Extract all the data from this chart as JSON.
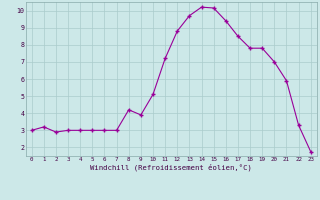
{
  "x": [
    0,
    1,
    2,
    3,
    4,
    5,
    6,
    7,
    8,
    9,
    10,
    11,
    12,
    13,
    14,
    15,
    16,
    17,
    18,
    19,
    20,
    21,
    22,
    23
  ],
  "y": [
    3.0,
    3.2,
    2.9,
    3.0,
    3.0,
    3.0,
    3.0,
    3.0,
    4.2,
    3.9,
    5.1,
    7.2,
    8.8,
    9.7,
    10.2,
    10.15,
    9.4,
    8.5,
    7.8,
    7.8,
    7.0,
    5.9,
    3.3,
    1.75
  ],
  "yticks": [
    2,
    3,
    4,
    5,
    6,
    7,
    8,
    9,
    10
  ],
  "xticks": [
    0,
    1,
    2,
    3,
    4,
    5,
    6,
    7,
    8,
    9,
    10,
    11,
    12,
    13,
    14,
    15,
    16,
    17,
    18,
    19,
    20,
    21,
    22,
    23
  ],
  "xlabel": "Windchill (Refroidissement éolien,°C)",
  "line_color": "#990099",
  "marker": "+",
  "bg_color": "#cce8e8",
  "grid_color": "#aacccc",
  "xlim_min": -0.5,
  "xlim_max": 23.5,
  "ylim_min": 1.5,
  "ylim_max": 10.5
}
